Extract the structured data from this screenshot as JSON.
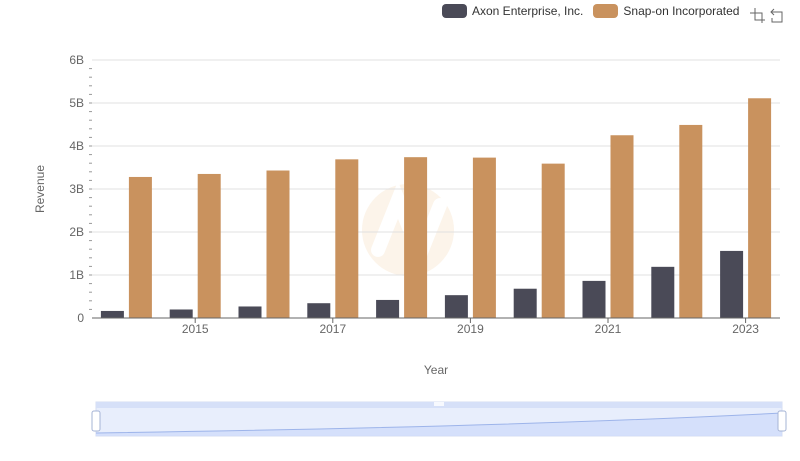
{
  "chart_data": {
    "type": "bar",
    "xlabel": "Year",
    "ylabel": "Revenue",
    "ylim": [
      0,
      6000000000
    ],
    "yticks": [
      {
        "value": 0,
        "label": "0"
      },
      {
        "value": 1000000000,
        "label": "1B"
      },
      {
        "value": 2000000000,
        "label": "2B"
      },
      {
        "value": 3000000000,
        "label": "3B"
      },
      {
        "value": 4000000000,
        "label": "4B"
      },
      {
        "value": 5000000000,
        "label": "5B"
      },
      {
        "value": 6000000000,
        "label": "6B"
      }
    ],
    "categories": [
      "2014",
      "2015",
      "2016",
      "2017",
      "2018",
      "2019",
      "2020",
      "2021",
      "2022",
      "2023"
    ],
    "xtick_labels": [
      "",
      "2015",
      "",
      "2017",
      "",
      "2019",
      "",
      "2021",
      "",
      "2023"
    ],
    "grid": true,
    "legend_position": "top-right",
    "series": [
      {
        "name": "Axon Enterprise, Inc.",
        "color": "#4a4a57",
        "values": [
          164000000,
          198000000,
          268000000,
          344000000,
          420000000,
          531000000,
          681000000,
          863000000,
          1190000000,
          1560000000
        ]
      },
      {
        "name": "Snap-on Incorporated",
        "color": "#c9925e",
        "values": [
          3280000000,
          3350000000,
          3430000000,
          3690000000,
          3740000000,
          3730000000,
          3590000000,
          4250000000,
          4490000000,
          5110000000
        ]
      }
    ]
  },
  "toolbox": {
    "icons": [
      "zoom-select-icon",
      "zoom-reset-icon"
    ]
  }
}
